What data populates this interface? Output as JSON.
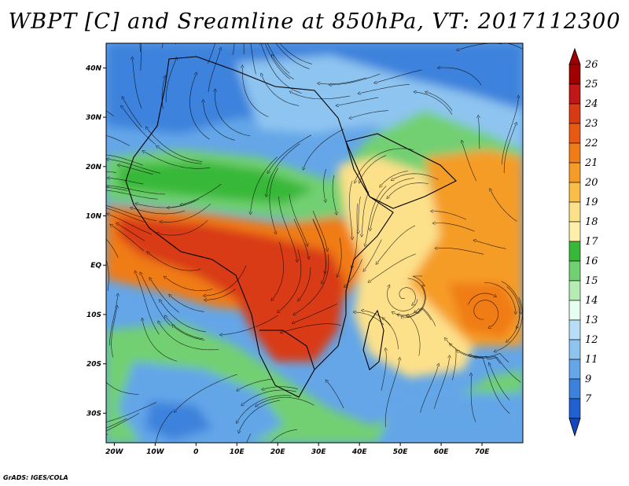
{
  "title": "WBPT [C] and Sreamline at 850hPa, VT: 2017112300",
  "credit": "GrADS: IGES/COLA",
  "map": {
    "lon_range": [
      -22,
      80
    ],
    "lat_range": [
      -36,
      45
    ],
    "lat_ticks": [
      {
        "value": 40,
        "label": "40N"
      },
      {
        "value": 30,
        "label": "30N"
      },
      {
        "value": 20,
        "label": "20N"
      },
      {
        "value": 10,
        "label": "10N"
      },
      {
        "value": 0,
        "label": "EQ"
      },
      {
        "value": -10,
        "label": "10S"
      },
      {
        "value": -20,
        "label": "20S"
      },
      {
        "value": -30,
        "label": "30S"
      }
    ],
    "lon_ticks": [
      {
        "value": -20,
        "label": "20W"
      },
      {
        "value": -10,
        "label": "10W"
      },
      {
        "value": 0,
        "label": "0"
      },
      {
        "value": 10,
        "label": "10E"
      },
      {
        "value": 20,
        "label": "20E"
      },
      {
        "value": 30,
        "label": "30E"
      },
      {
        "value": 40,
        "label": "40E"
      },
      {
        "value": 50,
        "label": "50E"
      },
      {
        "value": 60,
        "label": "60E"
      },
      {
        "value": 70,
        "label": "70E"
      }
    ]
  },
  "colorbar": {
    "levels": [
      {
        "label": "26",
        "color": "#a00000"
      },
      {
        "label": "25",
        "color": "#c01818"
      },
      {
        "label": "24",
        "color": "#d83a14"
      },
      {
        "label": "23",
        "color": "#e85a14"
      },
      {
        "label": "22",
        "color": "#f07c18"
      },
      {
        "label": "21",
        "color": "#f59c28"
      },
      {
        "label": "20",
        "color": "#f8be48"
      },
      {
        "label": "19",
        "color": "#fde08a"
      },
      {
        "label": "18",
        "color": "#ffefaa"
      },
      {
        "label": "17",
        "color": "#38b838"
      },
      {
        "label": "16",
        "color": "#72d072"
      },
      {
        "label": "15",
        "color": "#b4ecb4"
      },
      {
        "label": "14",
        "color": "#e6fff0"
      },
      {
        "label": "13",
        "color": "#b8ddf8"
      },
      {
        "label": "12",
        "color": "#8ec4f0"
      },
      {
        "label": "11",
        "color": "#64a6e8"
      },
      {
        "label": "9",
        "color": "#3c82dc"
      },
      {
        "label": "7",
        "color": "#2060d0"
      }
    ],
    "top_extension_color": "#a00000",
    "bottom_extension_color": "#1448c0"
  },
  "regions": [
    {
      "name": "north-blue",
      "color": "#3c82dc",
      "level": "9"
    },
    {
      "name": "north-light-blue",
      "color": "#8ec4f0",
      "level": "12"
    },
    {
      "name": "sahel-green",
      "color": "#72d072",
      "level": "16"
    },
    {
      "name": "tropical-orange",
      "color": "#f07c18",
      "level": "22"
    },
    {
      "name": "congo-red",
      "color": "#d83a14",
      "level": "24"
    },
    {
      "name": "indian-ocean-yellow",
      "color": "#fde08a",
      "level": "19"
    },
    {
      "name": "arabian-sea-orange",
      "color": "#f59c28",
      "level": "21"
    },
    {
      "name": "southern-green",
      "color": "#72d072",
      "level": "16"
    },
    {
      "name": "south-atlantic-blue",
      "color": "#64a6e8",
      "level": "11"
    }
  ]
}
